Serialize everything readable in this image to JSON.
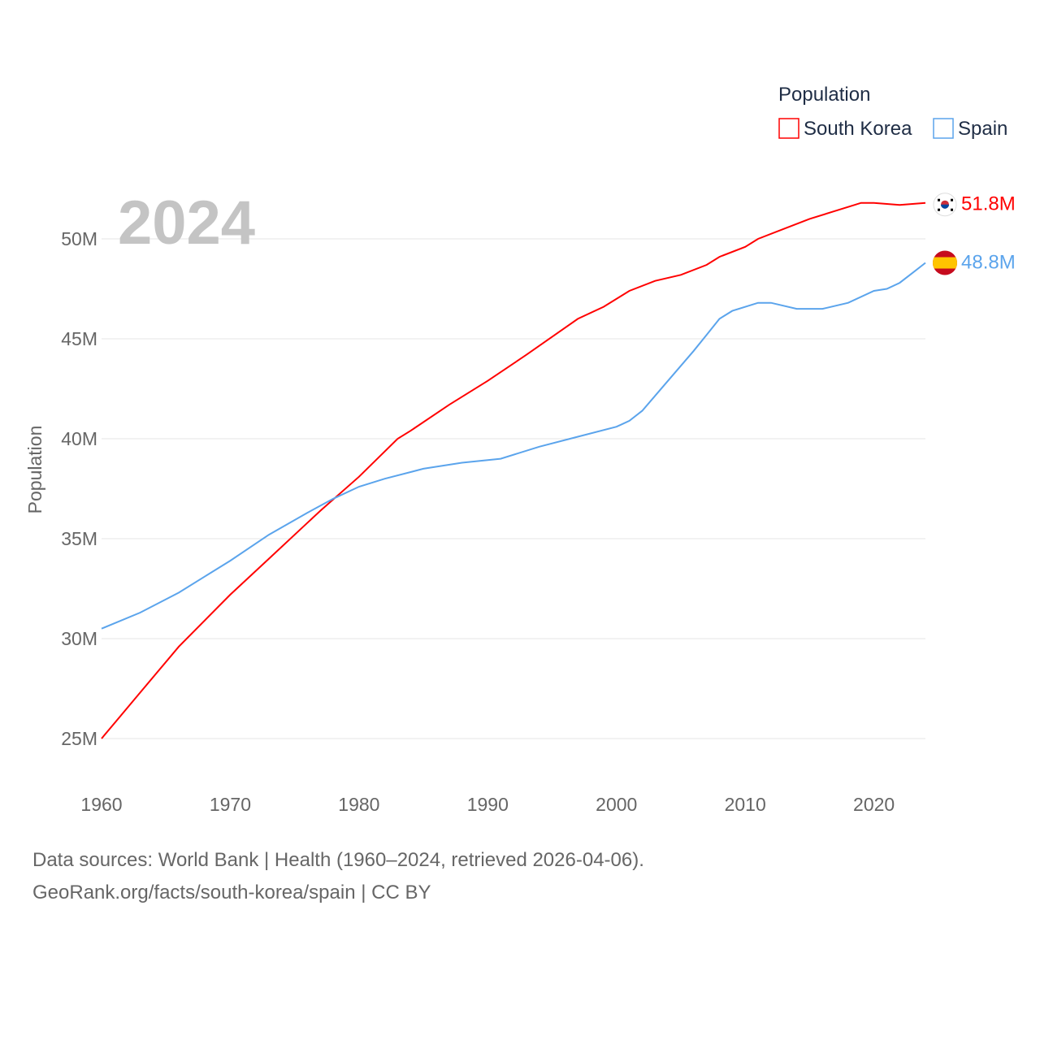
{
  "chart_data": {
    "type": "line",
    "title": "",
    "year_label": "2024",
    "xlabel": "",
    "ylabel": "Population",
    "xlim": [
      1960,
      2024
    ],
    "ylim": [
      25,
      52
    ],
    "x_ticks": [
      "1960",
      "1970",
      "1980",
      "1990",
      "2000",
      "2010",
      "2020"
    ],
    "y_ticks": [
      {
        "v": 25,
        "label": "25M"
      },
      {
        "v": 30,
        "label": "30M"
      },
      {
        "v": 35,
        "label": "35M"
      },
      {
        "v": 40,
        "label": "40M"
      },
      {
        "v": 45,
        "label": "45M"
      },
      {
        "v": 50,
        "label": "50M"
      }
    ],
    "grid": true,
    "legend": {
      "title": "Population",
      "placement": "top-right"
    },
    "series": [
      {
        "name": "South Korea",
        "color": "#ff0000",
        "end_label": "51.8M",
        "flag": "south-korea-flag",
        "x": [
          1960,
          1963,
          1966,
          1970,
          1973,
          1977,
          1980,
          1983,
          1984,
          1987,
          1990,
          1993,
          1997,
          1999,
          2001,
          2003,
          2005,
          2007,
          2008,
          2010,
          2011,
          2013,
          2015,
          2017,
          2019,
          2020,
          2022,
          2024
        ],
        "values": [
          25.0,
          27.3,
          29.6,
          32.2,
          34.0,
          36.4,
          38.1,
          40.0,
          40.4,
          41.7,
          42.9,
          44.2,
          46.0,
          46.6,
          47.4,
          47.9,
          48.2,
          48.7,
          49.1,
          49.6,
          50.0,
          50.5,
          51.0,
          51.4,
          51.8,
          51.8,
          51.7,
          51.8
        ]
      },
      {
        "name": "Spain",
        "color": "#5ba4ec",
        "end_label": "48.8M",
        "flag": "spain-flag",
        "x": [
          1960,
          1963,
          1966,
          1968,
          1970,
          1973,
          1976,
          1978,
          1980,
          1982,
          1985,
          1988,
          1991,
          1994,
          1997,
          2000,
          2001,
          2002,
          2004,
          2006,
          2007,
          2008,
          2009,
          2011,
          2012,
          2014,
          2015,
          2016,
          2018,
          2020,
          2021,
          2022,
          2023,
          2024
        ],
        "values": [
          30.5,
          31.3,
          32.3,
          33.1,
          33.9,
          35.2,
          36.3,
          37.0,
          37.6,
          38.0,
          38.5,
          38.8,
          39.0,
          39.6,
          40.1,
          40.6,
          40.9,
          41.4,
          42.9,
          44.4,
          45.2,
          46.0,
          46.4,
          46.8,
          46.8,
          46.5,
          46.5,
          46.5,
          46.8,
          47.4,
          47.5,
          47.8,
          48.3,
          48.8
        ]
      }
    ]
  },
  "footer": {
    "line1": "Data sources: World Bank | Health (1960–2024, retrieved 2026-04-06).",
    "line2": "GeoRank.org/facts/south-korea/spain | CC BY"
  }
}
